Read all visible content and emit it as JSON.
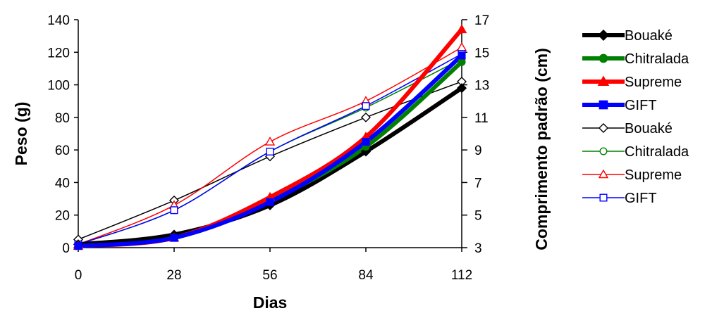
{
  "chart_data": {
    "type": "line",
    "xlabel": "Dias",
    "ylabel": "Peso (g)",
    "y2label": "Comprimento padrão (cm)",
    "x": [
      0,
      28,
      56,
      84,
      112
    ],
    "xticks": [
      "0",
      "28",
      "56",
      "84",
      "112"
    ],
    "ylim": [
      0,
      140
    ],
    "yticks": [
      "0",
      "20",
      "40",
      "60",
      "80",
      "100",
      "120",
      "140"
    ],
    "y2lim": [
      3,
      17
    ],
    "y2ticks": [
      "3",
      "5",
      "7",
      "9",
      "11",
      "13",
      "15",
      "17"
    ],
    "grid": false,
    "legend_position": "right",
    "series": [
      {
        "name": "Bouaké",
        "axis": "left",
        "metric": "peso",
        "color": "#000000",
        "marker": "diamond-filled",
        "thick": true,
        "values": [
          2,
          8,
          26,
          59,
          98
        ]
      },
      {
        "name": "Chitralada",
        "axis": "left",
        "metric": "peso",
        "color": "#008000",
        "marker": "circle-filled",
        "thick": true,
        "values": [
          1,
          6,
          29,
          62,
          114
        ]
      },
      {
        "name": "Supreme",
        "axis": "left",
        "metric": "peso",
        "color": "#ff0000",
        "marker": "triangle-filled",
        "thick": true,
        "values": [
          1,
          6,
          31,
          68,
          134
        ]
      },
      {
        "name": "GIFT",
        "axis": "left",
        "metric": "peso",
        "color": "#0000ff",
        "marker": "square-filled",
        "thick": true,
        "values": [
          1,
          6,
          28,
          65,
          118
        ]
      },
      {
        "name": "Bouaké",
        "axis": "right",
        "metric": "comprimento",
        "color": "#000000",
        "marker": "diamond-open",
        "thick": false,
        "values": [
          3.5,
          5.9,
          8.6,
          11.0,
          13.2
        ]
      },
      {
        "name": "Chitralada",
        "axis": "right",
        "metric": "comprimento",
        "color": "#008000",
        "marker": "circle-open",
        "thick": false,
        "values": [
          3.2,
          5.3,
          8.9,
          11.6,
          14.6
        ]
      },
      {
        "name": "Supreme",
        "axis": "right",
        "metric": "comprimento",
        "color": "#ff0000",
        "marker": "triangle-open",
        "thick": false,
        "values": [
          3.2,
          5.6,
          9.5,
          12.0,
          15.3
        ]
      },
      {
        "name": "GIFT",
        "axis": "right",
        "metric": "comprimento",
        "color": "#0000ff",
        "marker": "square-open",
        "thick": false,
        "values": [
          3.2,
          5.3,
          8.9,
          11.7,
          14.9
        ]
      }
    ]
  }
}
